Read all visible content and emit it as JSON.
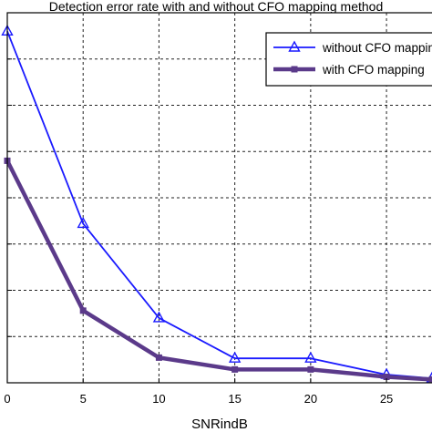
{
  "chart_data": {
    "type": "line",
    "title": "Detection error rate with and without CFO mapping method",
    "xlabel": "SNRindB",
    "ylabel": "",
    "x": [
      0,
      5,
      10,
      15,
      20,
      25,
      28
    ],
    "x_ticks": [
      0,
      5,
      10,
      15,
      20,
      25
    ],
    "xlim": [
      0,
      28
    ],
    "ylim": [
      0,
      1
    ],
    "grid": true,
    "legend_position": "top-right",
    "series": [
      {
        "name": "without CFO mapping",
        "color": "#1a1aff",
        "marker": "triangle",
        "values": [
          0.95,
          0.43,
          0.175,
          0.066,
          0.066,
          0.022,
          0.012
        ]
      },
      {
        "name": "with CFO mapping",
        "color": "#5b3a8a",
        "marker": "square",
        "values": [
          0.6,
          0.195,
          0.068,
          0.036,
          0.036,
          0.016,
          0.009
        ]
      }
    ]
  }
}
